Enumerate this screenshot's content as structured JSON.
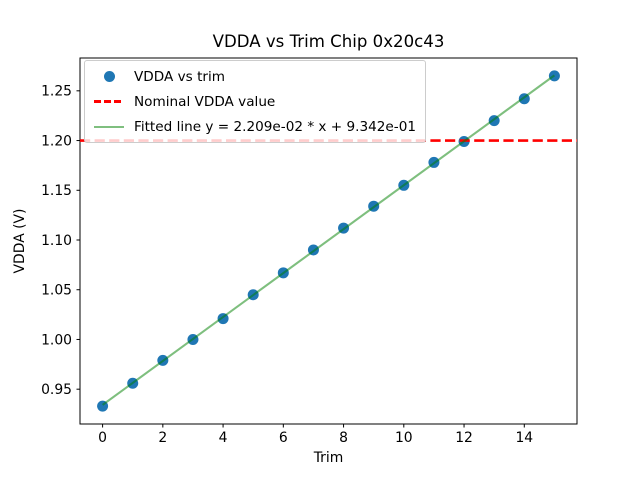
{
  "chart_data": {
    "type": "scatter",
    "title": "VDDA vs Trim Chip 0x20c43",
    "xlabel": "Trim",
    "ylabel": "VDDA (V)",
    "xlim": [
      -0.75,
      15.75
    ],
    "ylim": [
      0.915,
      1.283
    ],
    "xticks": [
      0,
      2,
      4,
      6,
      8,
      10,
      12,
      14
    ],
    "yticks": [
      0.95,
      1.0,
      1.05,
      1.1,
      1.15,
      1.2,
      1.25
    ],
    "grid": false,
    "legend_position": "upper-left",
    "x": [
      0,
      1,
      2,
      3,
      4,
      5,
      6,
      7,
      8,
      9,
      10,
      11,
      12,
      13,
      14,
      15
    ],
    "series": [
      {
        "name": "VDDA vs trim",
        "kind": "scatter",
        "marker": "circle",
        "color": "#1f77b4",
        "alpha": 1,
        "values": [
          0.933,
          0.956,
          0.979,
          1.0,
          1.021,
          1.045,
          1.067,
          1.09,
          1.112,
          1.134,
          1.155,
          1.178,
          1.199,
          1.22,
          1.242,
          1.265
        ]
      },
      {
        "name": "Nominal VDDA value",
        "kind": "hline",
        "linestyle": "dashed",
        "color": "#ff0000",
        "alpha": 1,
        "y": 1.2
      },
      {
        "name": "Fitted line y = 2.209e-02 * x + 9.342e-01",
        "kind": "line",
        "linestyle": "solid",
        "color": "#008000",
        "alpha": 0.5,
        "slope": 0.02209,
        "intercept": 0.9342,
        "x_start": 0,
        "x_end": 15
      }
    ]
  }
}
